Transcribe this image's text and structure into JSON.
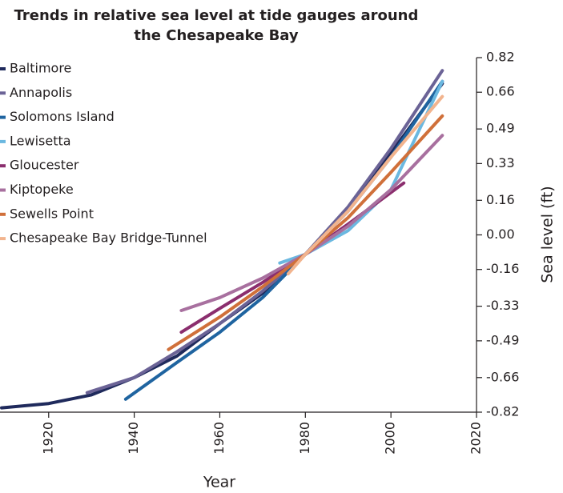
{
  "chart_data": {
    "type": "line",
    "title": [
      "Trends in relative sea level at tide gauges around",
      "the Chesapeake Bay"
    ],
    "x_label": "Year",
    "y_label": "Sea level (ft)",
    "xlim": [
      1909,
      2020
    ],
    "xticks": [
      1920,
      1940,
      1960,
      1980,
      2000,
      2020
    ],
    "ylim": [
      -0.82,
      0.82
    ],
    "yticks": [
      0.82,
      0.66,
      0.49,
      0.33,
      0.16,
      {
        "value": 0,
        "label": "0.00"
      },
      -0.16,
      -0.33,
      -0.49,
      -0.66,
      -0.82
    ],
    "legend": "upper left",
    "series": [
      {
        "name": "Baltimore",
        "color": "#1f2a5c",
        "x": [
          1909,
          1920,
          1930,
          1940,
          1950,
          1960,
          1970,
          1980,
          1990,
          2000,
          2012
        ],
        "values": [
          -0.8,
          -0.78,
          -0.74,
          -0.66,
          -0.56,
          -0.41,
          -0.27,
          -0.09,
          0.12,
          0.38,
          0.7
        ]
      },
      {
        "name": "Annapolis",
        "color": "#6b6396",
        "x": [
          1929,
          1940,
          1950,
          1960,
          1970,
          1980,
          1990,
          2000,
          2012
        ],
        "values": [
          -0.73,
          -0.66,
          -0.54,
          -0.41,
          -0.26,
          -0.09,
          0.13,
          0.4,
          0.76
        ]
      },
      {
        "name": "Solomons Island",
        "color": "#1f64a0",
        "x": [
          1938,
          1950,
          1960,
          1970,
          1980,
          1990,
          2000,
          2012
        ],
        "values": [
          -0.76,
          -0.59,
          -0.45,
          -0.29,
          -0.09,
          0.11,
          0.36,
          0.71
        ]
      },
      {
        "name": "Lewisetta",
        "color": "#6bb8e0",
        "x": [
          1974,
          1980,
          1990,
          2000,
          2006,
          2012
        ],
        "values": [
          -0.13,
          -0.09,
          0.02,
          0.21,
          0.46,
          0.71
        ]
      },
      {
        "name": "Gloucester",
        "color": "#8b2e6e",
        "x": [
          1951,
          1960,
          1970,
          1980,
          1990,
          2003
        ],
        "values": [
          -0.45,
          -0.34,
          -0.22,
          -0.09,
          0.05,
          0.24
        ]
      },
      {
        "name": "Kiptopeke",
        "color": "#a8709f",
        "x": [
          1951,
          1960,
          1970,
          1980,
          1990,
          2000,
          2012
        ],
        "values": [
          -0.35,
          -0.29,
          -0.2,
          -0.09,
          0.04,
          0.21,
          0.46
        ]
      },
      {
        "name": "Sewells Point",
        "color": "#d0703a",
        "x": [
          1948,
          1960,
          1970,
          1980,
          1990,
          2000,
          2012
        ],
        "values": [
          -0.53,
          -0.38,
          -0.24,
          -0.09,
          0.08,
          0.29,
          0.55
        ]
      },
      {
        "name": "Chesapeake Bay Bridge-Tunnel",
        "color": "#f2b48e",
        "x": [
          1976,
          1980,
          1990,
          2000,
          2012
        ],
        "values": [
          -0.18,
          -0.09,
          0.11,
          0.36,
          0.64
        ]
      }
    ]
  }
}
